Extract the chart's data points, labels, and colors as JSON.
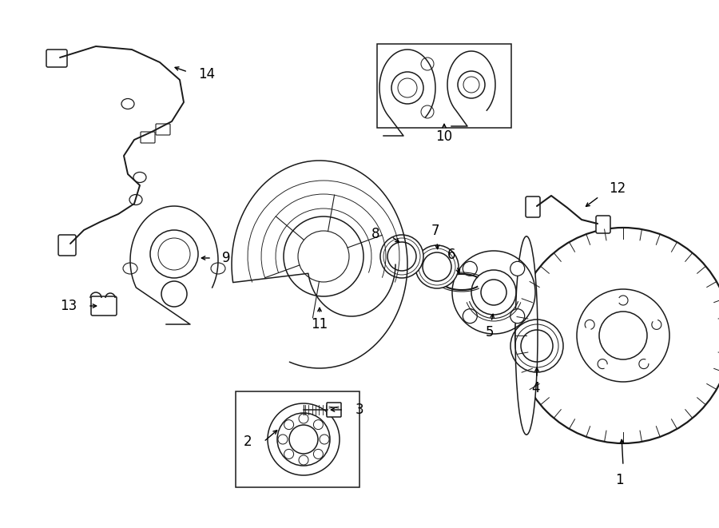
{
  "bg_color": "#ffffff",
  "line_color": "#1a1a1a",
  "fig_width": 9.0,
  "fig_height": 6.61,
  "lw": 1.1
}
